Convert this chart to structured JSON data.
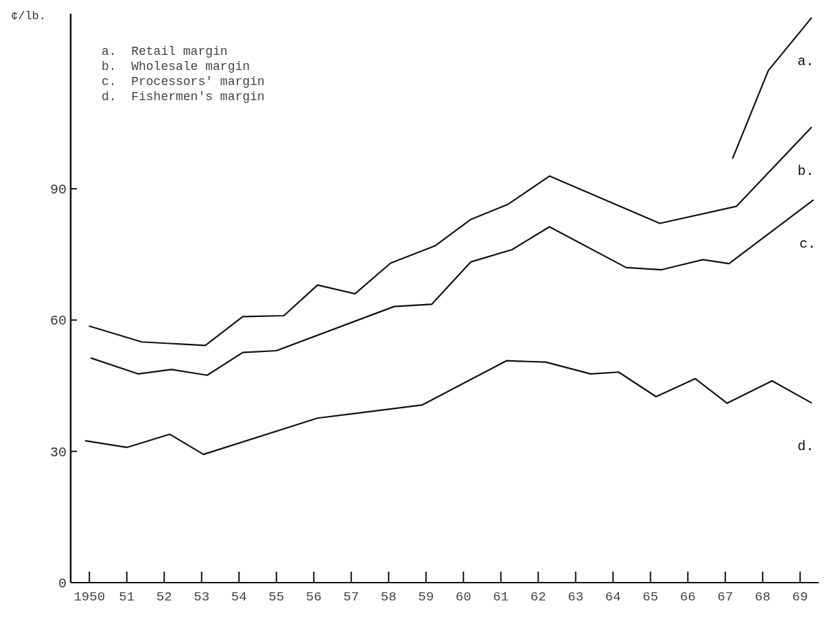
{
  "chart_data": {
    "type": "line",
    "ylabel": "¢/lb.",
    "xlim": [
      1949.5,
      1969.5
    ],
    "ylim": [
      0,
      130
    ],
    "xticks": [
      {
        "value": 1950,
        "label": "1950"
      },
      {
        "value": 1951,
        "label": "51"
      },
      {
        "value": 1952,
        "label": "52"
      },
      {
        "value": 1953,
        "label": "53"
      },
      {
        "value": 1954,
        "label": "54"
      },
      {
        "value": 1955,
        "label": "55"
      },
      {
        "value": 1956,
        "label": "56"
      },
      {
        "value": 1957,
        "label": "57"
      },
      {
        "value": 1958,
        "label": "58"
      },
      {
        "value": 1959,
        "label": "59"
      },
      {
        "value": 1960,
        "label": "60"
      },
      {
        "value": 1961,
        "label": "61"
      },
      {
        "value": 1962,
        "label": "62"
      },
      {
        "value": 1963,
        "label": "63"
      },
      {
        "value": 1964,
        "label": "64"
      },
      {
        "value": 1965,
        "label": "65"
      },
      {
        "value": 1966,
        "label": "66"
      },
      {
        "value": 1967,
        "label": "67"
      },
      {
        "value": 1968,
        "label": "68"
      },
      {
        "value": 1969,
        "label": "69"
      }
    ],
    "yticks": [
      0,
      30,
      60,
      90
    ],
    "grid": false,
    "marker": "none",
    "line_style": "solid",
    "annotations": [
      "a.  Retail margin",
      "b.  Wholesale margin",
      "c.  Processors' margin",
      "d.  Fishermen's margin"
    ],
    "series": [
      {
        "name": "a.",
        "color": "#111111",
        "x": [
          1967.2,
          1968.15,
          1969.3
        ],
        "values": [
          97,
          117,
          129
        ]
      },
      {
        "name": "b.",
        "color": "#111111",
        "x": [
          1950,
          1951.4,
          1953.1,
          1954.1,
          1955.2,
          1956.1,
          1957.1,
          1958.05,
          1959.25,
          1960.2,
          1961.2,
          1962.3,
          1965.25,
          1967.3,
          1968.7,
          1969.3
        ],
        "values": [
          58.6,
          55,
          54.2,
          60.8,
          61,
          68,
          66,
          73,
          77,
          83,
          86.5,
          92.9,
          82.1,
          86,
          98.6,
          104
        ]
      },
      {
        "name": "c.",
        "color": "#111111",
        "x": [
          1950.05,
          1951.3,
          1952.2,
          1953.15,
          1954.1,
          1955,
          1958.15,
          1959.15,
          1960.2,
          1961.3,
          1962.3,
          1964.35,
          1965.3,
          1966.4,
          1967.1,
          1969.35
        ],
        "values": [
          51.3,
          47.7,
          48.7,
          47.4,
          52.6,
          53,
          63.1,
          63.6,
          73.3,
          76.1,
          81.3,
          72,
          71.5,
          73.8,
          72.9,
          87.4
        ]
      },
      {
        "name": "d.",
        "color": "#111111",
        "x": [
          1949.9,
          1951,
          1952.15,
          1953.05,
          1956.1,
          1958.9,
          1961.15,
          1962.2,
          1963.4,
          1964.15,
          1965.15,
          1966.2,
          1967.05,
          1968.25,
          1969.3
        ],
        "values": [
          32.4,
          30.9,
          33.9,
          29.3,
          37.6,
          40.6,
          50.7,
          50.4,
          47.7,
          48.1,
          42.5,
          46.6,
          41,
          46.1,
          41.1
        ]
      }
    ]
  }
}
